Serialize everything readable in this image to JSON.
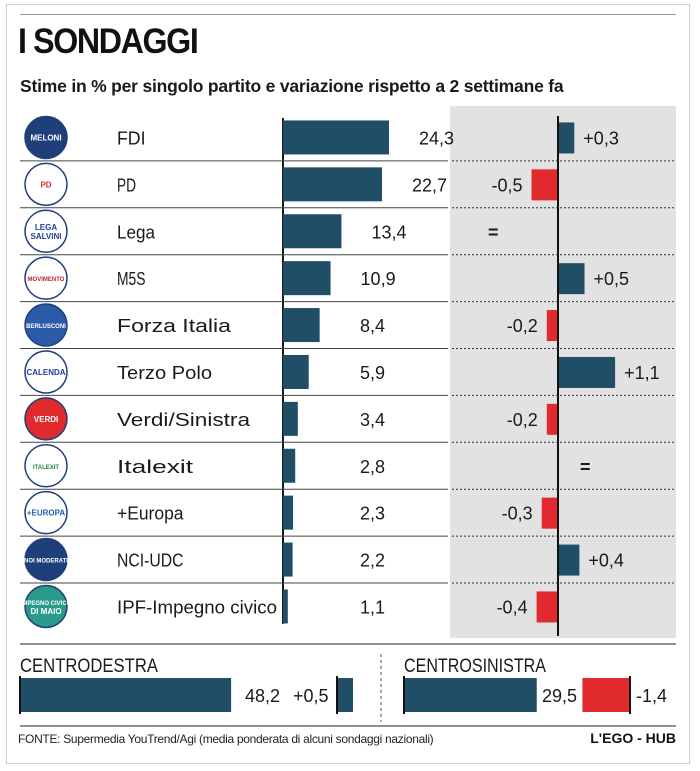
{
  "header": {
    "title": "I SONDAGGI",
    "subtitle": "Stime in % per singolo partito e variazione rispetto a 2 settimane fa"
  },
  "colors": {
    "bar": "#1f4e66",
    "negative": "#e02a2e",
    "band": "#e2e2e2",
    "text": "#1a1a1a"
  },
  "chart_data": {
    "type": "bar",
    "title": "I SONDAGGI",
    "subtitle": "Stime in % per singolo partito e variazione rispetto a 2 settimane fa",
    "categories": [
      "FDI",
      "PD",
      "Lega",
      "M5S",
      "Forza Italia",
      "Terzo Polo",
      "Verdi/Sinistra",
      "Italexit",
      "+Europa",
      "NCI-UDC",
      "IPF-Impegno civico"
    ],
    "series": [
      {
        "name": "Stima %",
        "values": [
          24.3,
          22.7,
          13.4,
          10.9,
          8.4,
          5.9,
          3.4,
          2.8,
          2.3,
          2.2,
          1.1
        ],
        "labels": [
          "24,3",
          "22,7",
          "13,4",
          "10,9",
          "8,4",
          "5,9",
          "3,4",
          "2,8",
          "2,3",
          "2,2",
          "1,1"
        ]
      },
      {
        "name": "Variazione rispetto a 2 settimane fa",
        "values": [
          0.3,
          -0.5,
          0,
          0.5,
          -0.2,
          1.1,
          -0.2,
          0,
          -0.3,
          0.4,
          -0.4
        ],
        "labels": [
          "+0,3",
          "-0,5",
          "=",
          "+0,5",
          "-0,2",
          "+1,1",
          "-0,2",
          "=",
          "-0,3",
          "+0,4",
          "-0,4"
        ]
      }
    ],
    "logos": [
      {
        "party": "FDI",
        "text": [
          "MELONI"
        ],
        "bg": "#1f3f7a",
        "fg": "#ffffff"
      },
      {
        "party": "PD",
        "text": [
          "PD"
        ],
        "bg": "#ffffff",
        "fg": "#e02a2e"
      },
      {
        "party": "Lega",
        "text": [
          "LEGA",
          "SALVINI"
        ],
        "bg": "#ffffff",
        "fg": "#1f3f9a"
      },
      {
        "party": "M5S",
        "text": [
          "MOVIMENTO"
        ],
        "bg": "#ffffff",
        "fg": "#c0282d"
      },
      {
        "party": "Forza Italia",
        "text": [
          "BERLUSCONI"
        ],
        "bg": "#2b5aa8",
        "fg": "#ffffff"
      },
      {
        "party": "Terzo Polo",
        "text": [
          "CALENDA"
        ],
        "bg": "#ffffff",
        "fg": "#1f3f9a"
      },
      {
        "party": "Verdi/Sinistra",
        "text": [
          "VERDI"
        ],
        "bg": "#e02a2e",
        "fg": "#ffffff"
      },
      {
        "party": "Italexit",
        "text": [
          "ITALEXIT"
        ],
        "bg": "#ffffff",
        "fg": "#1f8a3a"
      },
      {
        "party": "+Europa",
        "text": [
          "+EUROPA"
        ],
        "bg": "#ffffff",
        "fg": "#1f5fb0"
      },
      {
        "party": "NCI-UDC",
        "text": [
          "NOI MODERATI"
        ],
        "bg": "#1f3f7a",
        "fg": "#ffffff"
      },
      {
        "party": "IPF-Impegno civico",
        "text": [
          "IMPEGNO CIVICO",
          "DI MAIO"
        ],
        "bg": "#2b9a8a",
        "fg": "#ffffff"
      }
    ],
    "coalitions": [
      {
        "name": "CENTRODESTRA",
        "value": 48.2,
        "value_label": "48,2",
        "change": 0.5,
        "change_label": "+0,5"
      },
      {
        "name": "CENTROSINISTRA",
        "value": 29.5,
        "value_label": "29,5",
        "change": -1.4,
        "change_label": "-1,4"
      }
    ],
    "xlim": [
      0,
      25
    ]
  },
  "footer": {
    "source": "FONTE: Supermedia YouTrend/Agi (media ponderata di alcuni sondaggi nazionali)",
    "brand": "L'EGO - HUB"
  }
}
